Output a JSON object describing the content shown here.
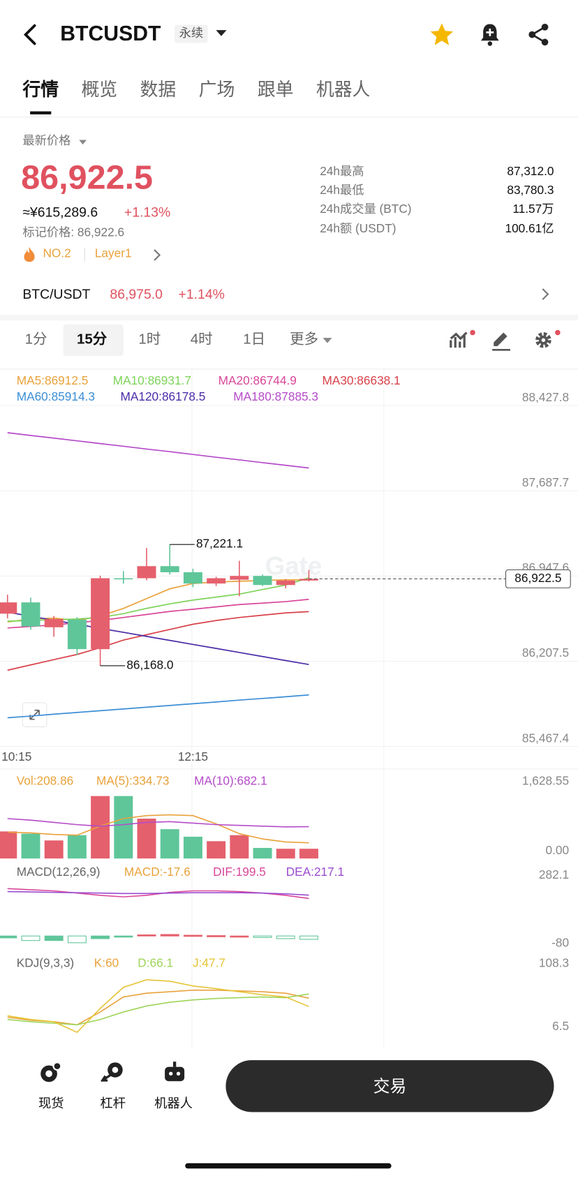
{
  "header": {
    "symbol": "BTCUSDT",
    "tag": "永续"
  },
  "tabs": [
    "行情",
    "概览",
    "数据",
    "广场",
    "跟单",
    "机器人"
  ],
  "price": {
    "label": "最新价格",
    "last": "86,922.5",
    "cny": "≈¥615,289.6",
    "change": "+1.13%",
    "mark": "标记价格: 86,922.6",
    "rank": "NO.2",
    "sector": "Layer1"
  },
  "stats": [
    {
      "label": "24h最高",
      "value": "87,312.0"
    },
    {
      "label": "24h最低",
      "value": "83,780.3"
    },
    {
      "label": "24h成交量 (BTC)",
      "value": "11.57万"
    },
    {
      "label": "24h额 (USDT)",
      "value": "100.61亿"
    }
  ],
  "spot": {
    "pair": "BTC/USDT",
    "price": "86,975.0",
    "change": "+1.14%"
  },
  "intervals": [
    "1分",
    "15分",
    "1时",
    "4时",
    "1日",
    "更多"
  ],
  "chart_data": {
    "type": "candlestick",
    "watermark": "Gate",
    "categories": [
      "10:15",
      null,
      null,
      null,
      null,
      null,
      null,
      null,
      "12:15",
      null,
      null,
      null,
      null,
      null
    ],
    "up_color": "#e5606d",
    "down_color": "#5fc69a",
    "candles": [
      {
        "open": 86620,
        "high": 86785,
        "low": 86580,
        "close": 86718
      },
      {
        "open": 86718,
        "high": 86760,
        "low": 86480,
        "close": 86509
      },
      {
        "open": 86502,
        "high": 86600,
        "low": 86420,
        "close": 86574
      },
      {
        "open": 86568,
        "high": 86590,
        "low": 86260,
        "close": 86312
      },
      {
        "open": 86312,
        "high": 86950,
        "low": 86168.0,
        "close": 86928
      },
      {
        "open": 86928,
        "high": 86990,
        "low": 86880,
        "close": 86920
      },
      {
        "open": 86928,
        "high": 87190,
        "low": 86910,
        "close": 87033
      },
      {
        "open": 87033,
        "high": 87221.1,
        "low": 86960,
        "close": 86980
      },
      {
        "open": 86980,
        "high": 87010,
        "low": 86850,
        "close": 86882
      },
      {
        "open": 86882,
        "high": 86940,
        "low": 86860,
        "close": 86928
      },
      {
        "open": 86915,
        "high": 87079,
        "low": 86771,
        "close": 86948
      },
      {
        "open": 86948,
        "high": 86960,
        "low": 86860,
        "close": 86869
      },
      {
        "open": 86869,
        "high": 86920,
        "low": 86840,
        "close": 86908
      },
      {
        "open": 86908,
        "high": 87000,
        "low": 86900,
        "close": 86922.5
      }
    ],
    "ylim": [
      85467.4,
      88427.8
    ],
    "yticks": [
      {
        "value": 88427.8,
        "label": "88,427.8"
      },
      {
        "value": 87687.7,
        "label": "87,687.7"
      },
      {
        "value": 86947.6,
        "label": "86,947.6"
      },
      {
        "value": 86207.5,
        "label": "86,207.5"
      },
      {
        "value": 85467.4,
        "label": "85,467.4"
      }
    ],
    "last_price": {
      "value": 86922.5,
      "label": "86,922.5"
    },
    "annotations": [
      {
        "value": 87221.1,
        "label": "87,221.1"
      },
      {
        "value": 86168.0,
        "label": "86,168.0"
      }
    ],
    "series": [
      {
        "name": "MA5",
        "legend": "MA5:86912.5",
        "color": "#e9a23b",
        "values": [
          86548,
          86574,
          86581,
          86561,
          86600,
          86666,
          86751,
          86836,
          86882,
          86895,
          86902,
          86908,
          86915,
          86912.5
        ]
      },
      {
        "name": "MA10",
        "legend": "MA10:86931.7",
        "color": "#7ed35a",
        "values": [
          86555,
          86561,
          86568,
          86574,
          86587,
          86620,
          86666,
          86705,
          86738,
          86764,
          86790,
          86830,
          86869,
          86931.7
        ]
      },
      {
        "name": "MA20",
        "legend": "MA20:86744.9",
        "color": "#d9479a",
        "values": [
          86496,
          86509,
          86522,
          86542,
          86561,
          86587,
          86613,
          86640,
          86659,
          86679,
          86699,
          86712,
          86725,
          86744.9
        ]
      },
      {
        "name": "MA30",
        "legend": "MA30:86638.1",
        "color": "#d9414a",
        "values": [
          86129,
          86175,
          86221,
          86266,
          86325,
          86391,
          86437,
          86483,
          86528,
          86561,
          86587,
          86607,
          86627,
          86638.1
        ]
      },
      {
        "name": "MA60",
        "legend": "MA60:85914.3",
        "color": "#3b8ed6",
        "values": [
          85716,
          85731,
          85747,
          85762,
          85777,
          85792,
          85808,
          85823,
          85838,
          85853,
          85869,
          85884,
          85899,
          85914.3
        ]
      },
      {
        "name": "MA120",
        "legend": "MA120:86178.5",
        "color": "#4b2ca8",
        "values": [
          86633,
          86598,
          86563,
          86528,
          86493,
          86458,
          86423,
          86388,
          86353,
          86318,
          86283,
          86248,
          86213,
          86178.5
        ]
      },
      {
        "name": "MA180",
        "legend": "MA180:87885.3",
        "color": "#b54bc9",
        "values": [
          88192,
          88168,
          88145,
          88121,
          88097,
          88074,
          88050,
          88027,
          88003,
          87979,
          87956,
          87932,
          87909,
          87885.3
        ]
      }
    ],
    "volume": {
      "legend": "Vol:208.86",
      "color": "#e9a23b",
      "values": [
        580,
        532,
        387,
        500,
        1338,
        1338,
        854,
        628,
        467,
        371,
        500,
        226,
        209,
        208.86
      ],
      "ylim": [
        0,
        1628.55
      ],
      "yticks": [
        {
          "value": 1628.55,
          "label": "1,628.55"
        },
        {
          "value": 0,
          "label": "0.00"
        }
      ],
      "series": [
        {
          "name": "MA(5)",
          "legend": "MA(5):334.73",
          "color": "#e9a23b",
          "values": [
            564,
            548,
            516,
            500,
            693,
            854,
            919,
            935,
            919,
            741,
            532,
            419,
            355,
            334.73
          ]
        },
        {
          "name": "MA(10)",
          "legend": "MA(10):682.1",
          "color": "#b54bc9",
          "values": [
            854,
            822,
            774,
            725,
            693,
            725,
            774,
            790,
            758,
            725,
            709,
            693,
            677,
            682.1
          ]
        }
      ]
    },
    "macd": {
      "title": "MACD(12,26,9)",
      "legend": "MACD:-17.6",
      "color": "#e9a23b",
      "values": [
        -10,
        -24,
        -24,
        -36,
        -14,
        -4,
        6,
        8,
        4,
        2,
        0,
        -8,
        -14,
        -17.6
      ],
      "ylim": [
        -80,
        282.1
      ],
      "yticks": [
        282.1,
        -80
      ],
      "series": [
        {
          "name": "DIF",
          "legend": "DIF:199.5",
          "color": "#d9479a",
          "values": [
            252,
            246,
            240,
            228,
            216,
            208,
            216,
            232,
            240,
            240,
            236,
            228,
            216,
            199.5
          ]
        },
        {
          "name": "DEA",
          "legend": "DEA:217.1",
          "color": "#9b4bd0",
          "values": [
            236,
            234,
            232,
            230,
            228,
            226,
            226,
            228,
            230,
            230,
            230,
            228,
            224,
            217.1
          ]
        }
      ]
    },
    "kdj": {
      "title": "KDJ(9,3,3)",
      "ylim": [
        6.5,
        108.3
      ],
      "yticks": [
        108.3,
        6.5
      ],
      "series": [
        {
          "name": "K",
          "legend": "K:60",
          "color": "#e8a33d",
          "values": [
            31.9,
            27.5,
            25.3,
            20.9,
            39.7,
            61.8,
            67.3,
            69.5,
            71.8,
            71.8,
            70.7,
            69.5,
            67.3,
            60
          ]
        },
        {
          "name": "D",
          "legend": "D:66.1",
          "color": "#9fd45a",
          "values": [
            28.6,
            25.3,
            23.1,
            20.9,
            28.6,
            39.7,
            48.5,
            54,
            57.4,
            59.6,
            60.7,
            61.8,
            60.7,
            66.1
          ]
        },
        {
          "name": "J",
          "legend": "J:47.7",
          "color": "#e5c437",
          "values": [
            34,
            28.6,
            25.3,
            9.8,
            45,
            76,
            87,
            85,
            78,
            74,
            69.5,
            65,
            61.8,
            47.7
          ]
        }
      ]
    }
  },
  "nav": [
    "现货",
    "杠杆",
    "机器人"
  ],
  "trade": "交易"
}
